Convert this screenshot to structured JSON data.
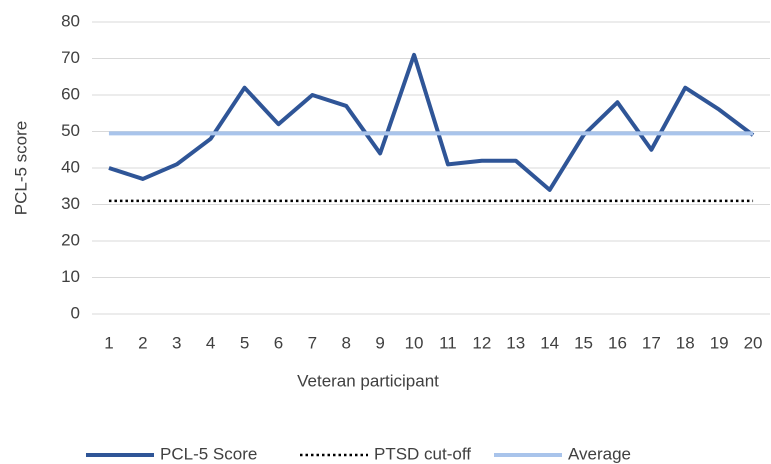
{
  "chart_data": {
    "type": "line",
    "x_label": "Veteran participant",
    "y_label": "PCL-5 score",
    "categories": [
      "1",
      "2",
      "3",
      "4",
      "5",
      "6",
      "7",
      "8",
      "9",
      "10",
      "11",
      "12",
      "13",
      "14",
      "15",
      "16",
      "17",
      "18",
      "19",
      "20"
    ],
    "series": [
      {
        "name": "PCL-5 Score",
        "color": "#2f5597",
        "style": "solid",
        "width": 4,
        "values": [
          40,
          37,
          41,
          48,
          62,
          52,
          60,
          57,
          44,
          71,
          41,
          42,
          42,
          34,
          49,
          58,
          45,
          62,
          56,
          49
        ]
      },
      {
        "name": "PTSD cut-off",
        "color": "#000000",
        "style": "dotted",
        "width": 2.5,
        "values": [
          31,
          31,
          31,
          31,
          31,
          31,
          31,
          31,
          31,
          31,
          31,
          31,
          31,
          31,
          31,
          31,
          31,
          31,
          31,
          31
        ]
      },
      {
        "name": "Average",
        "color": "#a9c4eb",
        "style": "solid",
        "width": 4,
        "values": [
          49.5,
          49.5,
          49.5,
          49.5,
          49.5,
          49.5,
          49.5,
          49.5,
          49.5,
          49.5,
          49.5,
          49.5,
          49.5,
          49.5,
          49.5,
          49.5,
          49.5,
          49.5,
          49.5,
          49.5
        ]
      }
    ],
    "ylim": [
      0,
      80
    ],
    "yticks": [
      0,
      10,
      20,
      30,
      40,
      50,
      60,
      70,
      80
    ],
    "grid": true,
    "legend": "bottom"
  }
}
